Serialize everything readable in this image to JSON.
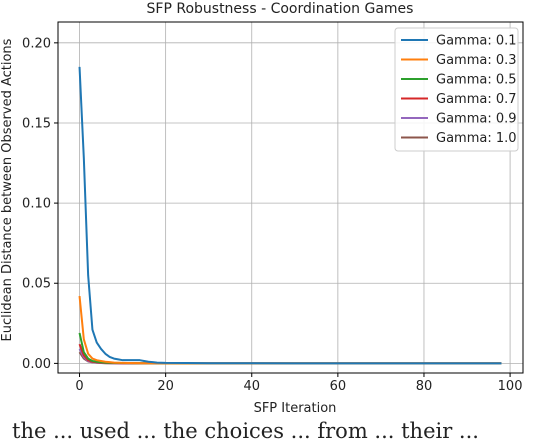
{
  "chart_data": {
    "type": "line",
    "title": "SFP Robustness - Coordination Games",
    "xlabel": "SFP Iteration",
    "ylabel": "Euclidean Distance between Observed Actions",
    "xlim": [
      -5,
      103
    ],
    "ylim": [
      -0.006,
      0.213
    ],
    "xticks": [
      0,
      20,
      40,
      60,
      80,
      100
    ],
    "xtick_labels": [
      "0",
      "20",
      "40",
      "60",
      "80",
      "100"
    ],
    "yticks": [
      0.0,
      0.05,
      0.1,
      0.15,
      0.2
    ],
    "ytick_labels": [
      "0.00",
      "0.05",
      "0.10",
      "0.15",
      "0.20"
    ],
    "grid": true,
    "legend_position": "top-right",
    "series": [
      {
        "name": "Gamma: 0.1",
        "color": "#1f77b4",
        "x": [
          0,
          1,
          2,
          3,
          4,
          5,
          6,
          7,
          8,
          9,
          10,
          11,
          12,
          13,
          14,
          15,
          16,
          17,
          18,
          20,
          25,
          30,
          40,
          50,
          60,
          70,
          80,
          90,
          98
        ],
        "y": [
          0.185,
          0.128,
          0.055,
          0.021,
          0.013,
          0.009,
          0.006,
          0.004,
          0.003,
          0.0025,
          0.002,
          0.002,
          0.002,
          0.002,
          0.002,
          0.0015,
          0.001,
          0.0008,
          0.0005,
          0.0003,
          0.0002,
          0.0001,
          0.0001,
          0.0,
          0.0,
          0.0,
          0.0,
          0.0,
          0.0
        ]
      },
      {
        "name": "Gamma: 0.3",
        "color": "#ff7f0e",
        "x": [
          0,
          1,
          2,
          3,
          4,
          5,
          6,
          7,
          8,
          10,
          12,
          15,
          20,
          30,
          50,
          70,
          98
        ],
        "y": [
          0.042,
          0.015,
          0.006,
          0.003,
          0.002,
          0.0015,
          0.001,
          0.0008,
          0.0005,
          0.0003,
          0.0002,
          0.0001,
          0.0,
          0.0,
          0.0,
          0.0,
          0.0
        ]
      },
      {
        "name": "Gamma: 0.5",
        "color": "#2ca02c",
        "x": [
          0,
          1,
          2,
          3,
          4,
          5,
          6,
          8,
          10,
          15,
          20,
          50,
          98
        ],
        "y": [
          0.019,
          0.007,
          0.003,
          0.0015,
          0.001,
          0.0007,
          0.0005,
          0.0003,
          0.0002,
          0.0001,
          0.0,
          0.0,
          0.0
        ]
      },
      {
        "name": "Gamma: 0.7",
        "color": "#d62728",
        "x": [
          0,
          1,
          2,
          3,
          4,
          5,
          6,
          8,
          10,
          15,
          20,
          50,
          98
        ],
        "y": [
          0.012,
          0.005,
          0.002,
          0.001,
          0.0007,
          0.0005,
          0.0003,
          0.0002,
          0.0001,
          0.0,
          0.0,
          0.0,
          0.0
        ]
      },
      {
        "name": "Gamma: 0.9",
        "color": "#9467bd",
        "x": [
          0,
          1,
          2,
          3,
          4,
          5,
          6,
          8,
          10,
          15,
          20,
          50,
          98
        ],
        "y": [
          0.009,
          0.004,
          0.0015,
          0.0008,
          0.0005,
          0.0003,
          0.0002,
          0.0001,
          0.0,
          0.0,
          0.0,
          0.0,
          0.0
        ]
      },
      {
        "name": "Gamma: 1.0",
        "color": "#8c564b",
        "x": [
          0,
          1,
          2,
          3,
          4,
          5,
          6,
          8,
          10,
          15,
          20,
          50,
          98
        ],
        "y": [
          0.007,
          0.003,
          0.0012,
          0.0006,
          0.0004,
          0.0002,
          0.0001,
          0.0,
          0.0,
          0.0,
          0.0,
          0.0,
          0.0
        ]
      }
    ]
  },
  "caption": "the ... used ... the choices ... from ... their ..."
}
